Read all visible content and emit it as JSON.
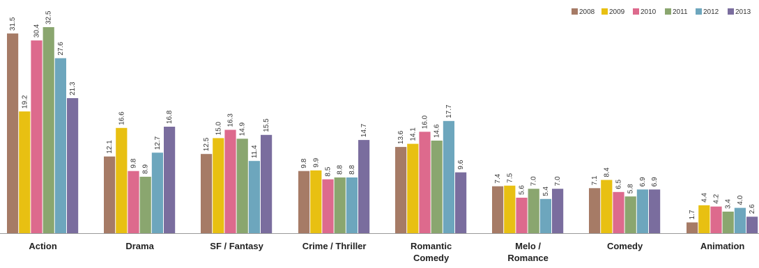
{
  "chart_data": {
    "type": "bar",
    "categories": [
      [
        "Action"
      ],
      [
        "Drama"
      ],
      [
        "SF / Fantasy"
      ],
      [
        "Crime / Thriller"
      ],
      [
        "Romantic",
        "Comedy"
      ],
      [
        "Melo /",
        "Romance"
      ],
      [
        "Comedy"
      ],
      [
        "Animation"
      ]
    ],
    "series": [
      {
        "name": "2008",
        "color": "#a67b66",
        "values": [
          31.5,
          12.1,
          12.5,
          9.8,
          13.6,
          7.4,
          7.1,
          1.7
        ]
      },
      {
        "name": "2009",
        "color": "#e8c012",
        "values": [
          19.2,
          16.6,
          15.0,
          9.9,
          14.1,
          7.5,
          8.4,
          4.4
        ]
      },
      {
        "name": "2010",
        "color": "#dd6a8d",
        "values": [
          30.4,
          9.8,
          16.3,
          8.5,
          16.0,
          5.6,
          6.5,
          4.2
        ]
      },
      {
        "name": "2011",
        "color": "#8aa66f",
        "values": [
          32.5,
          8.9,
          14.9,
          8.8,
          14.6,
          7.0,
          5.8,
          3.4
        ]
      },
      {
        "name": "2012",
        "color": "#6da6bd",
        "values": [
          27.6,
          12.7,
          11.4,
          8.8,
          17.7,
          5.4,
          6.9,
          4.0
        ]
      },
      {
        "name": "2013",
        "color": "#7a6d9e",
        "values": [
          21.3,
          16.8,
          15.5,
          14.7,
          9.6,
          7.0,
          6.9,
          2.6
        ]
      }
    ],
    "value_labels": [
      [
        "31.5",
        "19.2",
        "30.4",
        "32.5",
        "27.6",
        "21.3"
      ],
      [
        "12.1",
        "16.6",
        "9.8",
        "8.9",
        "12.7",
        "16.8"
      ],
      [
        "12.5",
        "15.0",
        "16.3",
        "14.9",
        "11.4",
        "15.5"
      ],
      [
        "9.8",
        "9.9",
        "8.5",
        "8.8",
        "8.8",
        "14.7"
      ],
      [
        "13.6",
        "14.1",
        "16.0",
        "14.6",
        "17.7",
        "9.6"
      ],
      [
        "7.4",
        "7.5",
        "5.6",
        "7.0",
        "5.4",
        "7.0"
      ],
      [
        "7.1",
        "8.4",
        "6.5",
        "5.8",
        "6.9",
        "6.9"
      ],
      [
        "1.7",
        "4.4",
        "4.2",
        "3.4",
        "4.0",
        "2.6"
      ]
    ],
    "ylim": [
      0,
      32.5
    ],
    "grid": false,
    "legend_position": "top-right"
  }
}
